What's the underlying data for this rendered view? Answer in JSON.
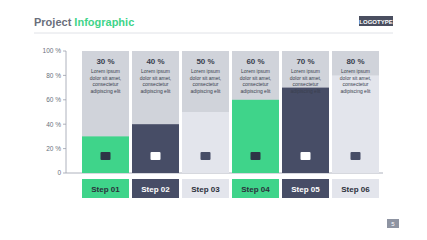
{
  "chart_data": {
    "type": "bar",
    "title": "Project Infographic",
    "logo": "LOGOTYPE",
    "page_number": "5",
    "categories": [
      "Step 01",
      "Step 02",
      "Step 03",
      "Step 04",
      "Step 05",
      "Step 06"
    ],
    "values": [
      30,
      40,
      50,
      60,
      70,
      80
    ],
    "value_labels": [
      "30 %",
      "40 %",
      "50 %",
      "60 %",
      "70 %",
      "80 %"
    ],
    "data_labels": true,
    "descriptions": [
      [
        "Lorem ipsum",
        "dolor sit amet,",
        "consectetur",
        "adipiscing elit"
      ],
      [
        "Lorem ipsum",
        "dolor sit amet,",
        "consectetur",
        "adipiscing elit"
      ],
      [
        "Lorem ipsum",
        "dolor sit amet,",
        "consectetur",
        "adipiscing elit"
      ],
      [
        "Lorem ipsum",
        "dolor sit amet,",
        "consectetur",
        "adipiscing elit"
      ],
      [
        "Lorem ipsum",
        "dolor sit amet,",
        "consectetur",
        "adipiscing elit"
      ],
      [
        "Lorem ipsum",
        "dolor sit amet,",
        "consectetur",
        "adipiscing elit"
      ]
    ],
    "colors": [
      "#3fd48a",
      "#474d66",
      "#e3e5ec",
      "#3fd48a",
      "#474d66",
      "#e3e5ec"
    ],
    "ylim": [
      0,
      100
    ],
    "yticks": [
      {
        "value": 0,
        "label": "0"
      },
      {
        "value": 20,
        "label": "20 %"
      },
      {
        "value": 40,
        "label": "40 %"
      },
      {
        "value": 60,
        "label": "60 %"
      },
      {
        "value": 80,
        "label": "80 %"
      },
      {
        "value": 100,
        "label": "100 %"
      }
    ]
  }
}
